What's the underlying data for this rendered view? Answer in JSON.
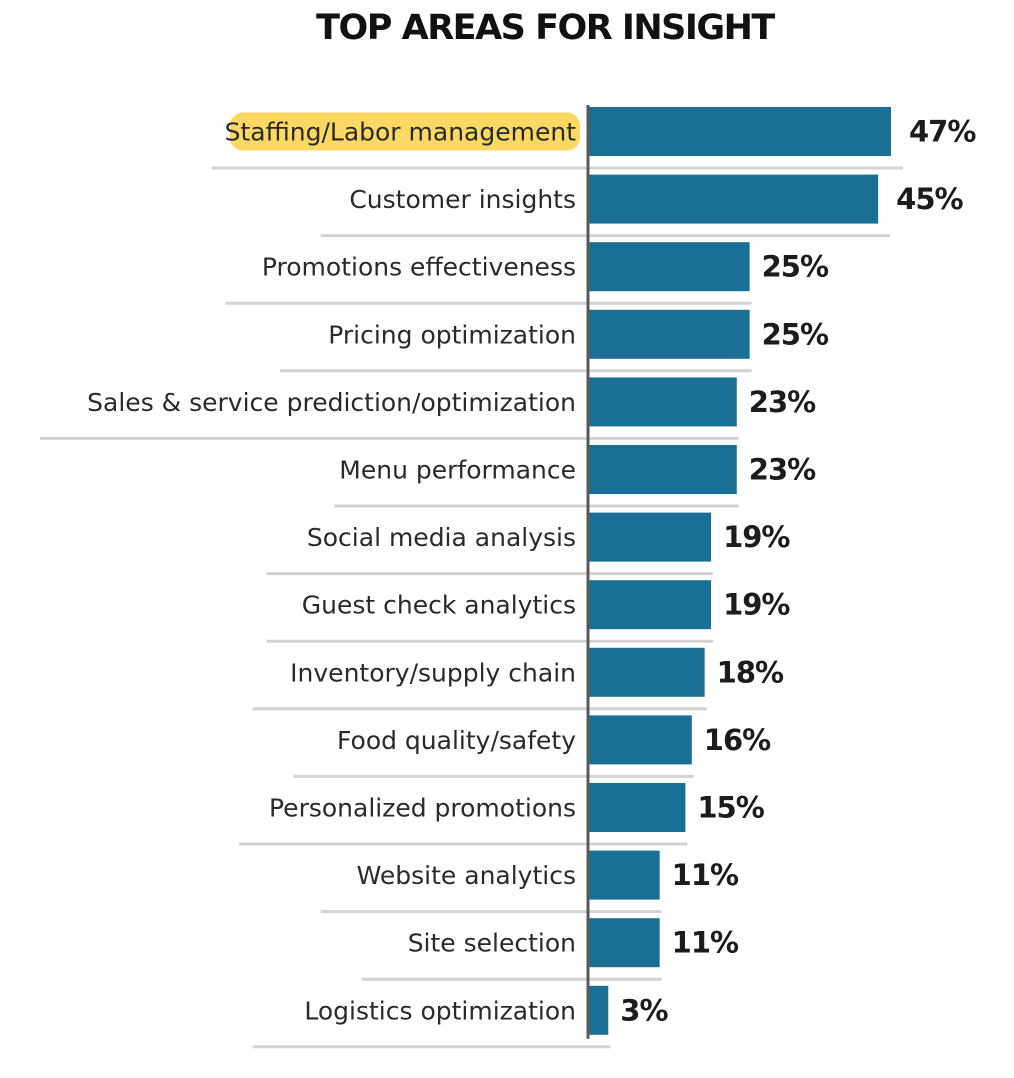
{
  "chart_data": {
    "type": "bar",
    "orientation": "horizontal",
    "title": "TOP AREAS FOR INSIGHT",
    "categories": [
      "Staffing/Labor management",
      "Customer insights",
      "Promotions effectiveness",
      "Pricing optimization",
      "Sales & service prediction/optimization",
      "Menu performance",
      "Social media analysis",
      "Guest check analytics",
      "Inventory/supply chain",
      "Food quality/safety",
      "Personalized promotions",
      "Website analytics",
      "Site selection",
      "Logistics optimization"
    ],
    "values": [
      47,
      45,
      25,
      25,
      23,
      23,
      19,
      19,
      18,
      16,
      15,
      11,
      11,
      3
    ],
    "value_labels": [
      "47%",
      "45%",
      "25%",
      "25%",
      "23%",
      "23%",
      "19%",
      "19%",
      "18%",
      "16%",
      "15%",
      "11%",
      "11%",
      "3%"
    ],
    "highlighted_category": "Staffing/Labor management",
    "xlim": [
      0,
      47
    ],
    "grid": false,
    "colors": {
      "bar": "#1a7094",
      "highlight": "#fdd963",
      "axis": "#5a5a5a",
      "separator": "#d3d3d6"
    }
  }
}
